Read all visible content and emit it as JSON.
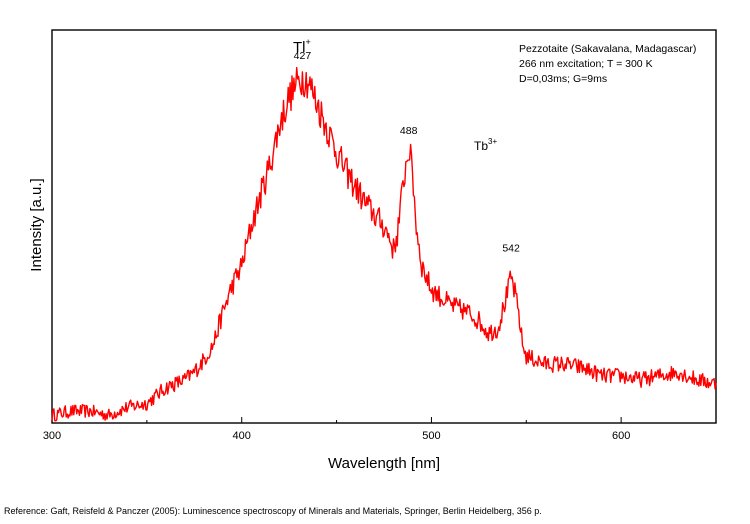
{
  "chart_data": {
    "type": "line",
    "xlabel": "Wavelength [nm]",
    "ylabel": "Intensity [a.u.]",
    "xlim": [
      300,
      650
    ],
    "ylim": [
      0,
      100
    ],
    "x_ticks": [
      300,
      400,
      500,
      600
    ],
    "y_ticks_shown": false,
    "grid": false,
    "line_color": "#ff0000",
    "annotations": {
      "info_lines": [
        "Pezzotaite (Sakavalana, Madagascar)",
        "266 nm excitation; T = 300 K",
        "D=0,03ms; G=9ms"
      ],
      "tl_label": "Tl",
      "tl_superscript": "+",
      "tb_label": "Tb",
      "tb_superscript": "3+",
      "peak_labels": [
        {
          "text": "427",
          "x": 432,
          "y": 88
        },
        {
          "text": "488",
          "x": 488,
          "y": 69
        },
        {
          "text": "542",
          "x": 542,
          "y": 39
        }
      ]
    },
    "series": [
      {
        "x": [
          300,
          310,
          320,
          330,
          340,
          350,
          355,
          360,
          370,
          375,
          380,
          385,
          390,
          395,
          400,
          405,
          410,
          415,
          420,
          425,
          430,
          432,
          435,
          440,
          445,
          450,
          455,
          460,
          465,
          470,
          475,
          478,
          480,
          482,
          484,
          486,
          488,
          490,
          492,
          495,
          500,
          505,
          510,
          515,
          520,
          525,
          530,
          535,
          540,
          542,
          544,
          546,
          548,
          550,
          555,
          560,
          570,
          580,
          590,
          600,
          610,
          620,
          630,
          640,
          650
        ],
        "y": [
          2,
          3,
          3,
          2,
          4,
          5,
          7,
          9,
          11,
          13,
          16,
          20,
          28,
          35,
          40,
          50,
          58,
          66,
          76,
          83,
          87,
          88,
          87,
          81,
          75,
          69,
          64,
          60,
          56,
          53,
          50,
          47,
          44,
          48,
          56,
          64,
          70,
          64,
          50,
          40,
          34,
          32,
          30,
          29,
          28,
          26,
          23,
          24,
          33,
          37,
          33,
          28,
          20,
          17,
          16,
          15,
          15,
          14,
          12,
          12,
          11,
          12,
          13,
          11,
          10
        ]
      }
    ]
  },
  "footer": {
    "reference": "Reference: Gaft, Reisfeld & Panczer (2005): Luminescence spectroscopy of Minerals and Materials, Springer, Berlin Heidelberg, 356 p."
  }
}
